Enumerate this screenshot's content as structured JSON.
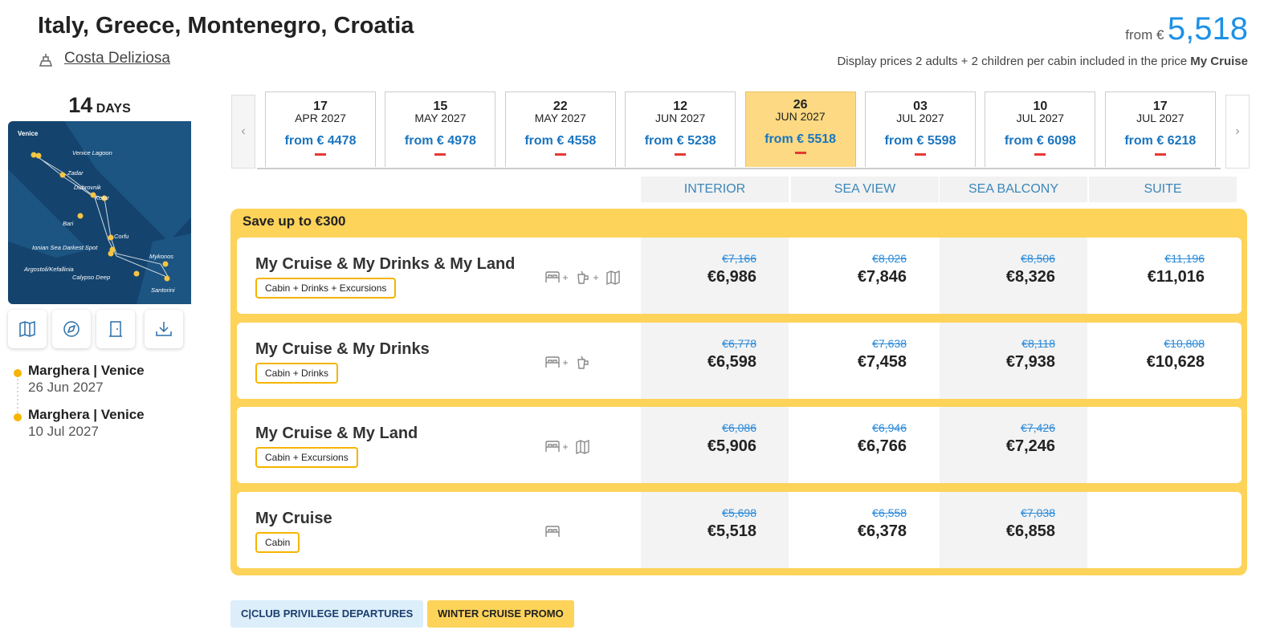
{
  "header": {
    "title": "Italy, Greece, Montenegro, Croatia",
    "ship": "Costa Deliziosa",
    "price_prefix": "from €",
    "price": "5,518",
    "note": "Display prices 2 adults + 2 children per cabin included in the price",
    "note_bold": "My Cruise"
  },
  "left": {
    "days_number": "14",
    "days_label": "DAYS",
    "map_labels": [
      "Venice",
      "Venice Lagoon",
      "Zadar",
      "Dubrovnik",
      "Kotor",
      "Bari",
      "Corfu",
      "Ionian Sea Darkest Spot",
      "Argostoli/Kefallinia",
      "Mykonos",
      "Calypso Deep",
      "Santorini"
    ],
    "itinerary": [
      {
        "port": "Marghera | Venice",
        "date": "26 Jun 2027"
      },
      {
        "port": "Marghera | Venice",
        "date": "10 Jul 2027"
      }
    ]
  },
  "dates": [
    {
      "day": "17",
      "month": "APR 2027",
      "price": "from € 4478"
    },
    {
      "day": "15",
      "month": "MAY 2027",
      "price": "from € 4978"
    },
    {
      "day": "22",
      "month": "MAY 2027",
      "price": "from € 4558"
    },
    {
      "day": "12",
      "month": "JUN 2027",
      "price": "from € 5238"
    },
    {
      "day": "26",
      "month": "JUN 2027",
      "price": "from € 5518",
      "selected": true
    },
    {
      "day": "03",
      "month": "JUL 2027",
      "price": "from € 5598"
    },
    {
      "day": "10",
      "month": "JUL 2027",
      "price": "from € 6098"
    },
    {
      "day": "17",
      "month": "JUL 2027",
      "price": "from € 6218"
    }
  ],
  "cabins": [
    "INTERIOR",
    "SEA VIEW",
    "SEA BALCONY",
    "SUITE"
  ],
  "promo": "Save up to €300",
  "packages": [
    {
      "name": "My Cruise & My Drinks & My Land",
      "tag": "Cabin + Drinks + Excursions",
      "icons": [
        "cabin",
        "drinks",
        "excursions"
      ],
      "prices": [
        {
          "old": "€7,166",
          "new": "€6,986"
        },
        {
          "old": "€8,026",
          "new": "€7,846"
        },
        {
          "old": "€8,506",
          "new": "€8,326"
        },
        {
          "old": "€11,196",
          "new": "€11,016"
        }
      ]
    },
    {
      "name": "My Cruise & My Drinks",
      "tag": "Cabin + Drinks",
      "icons": [
        "cabin",
        "drinks"
      ],
      "prices": [
        {
          "old": "€6,778",
          "new": "€6,598"
        },
        {
          "old": "€7,638",
          "new": "€7,458"
        },
        {
          "old": "€8,118",
          "new": "€7,938"
        },
        {
          "old": "€10,808",
          "new": "€10,628"
        }
      ]
    },
    {
      "name": "My Cruise & My Land",
      "tag": "Cabin + Excursions",
      "icons": [
        "cabin",
        "excursions"
      ],
      "prices": [
        {
          "old": "€6,086",
          "new": "€5,906"
        },
        {
          "old": "€6,946",
          "new": "€6,766"
        },
        {
          "old": "€7,426",
          "new": "€7,246"
        }
      ]
    },
    {
      "name": "My Cruise",
      "tag": "Cabin",
      "icons": [
        "cabin"
      ],
      "prices": [
        {
          "old": "€5,698",
          "new": "€5,518"
        },
        {
          "old": "€6,558",
          "new": "€6,378"
        },
        {
          "old": "€7,038",
          "new": "€6,858"
        }
      ]
    }
  ],
  "badges": [
    "C|CLUB PRIVILEGE DEPARTURES",
    "WINTER CRUISE PROMO"
  ]
}
